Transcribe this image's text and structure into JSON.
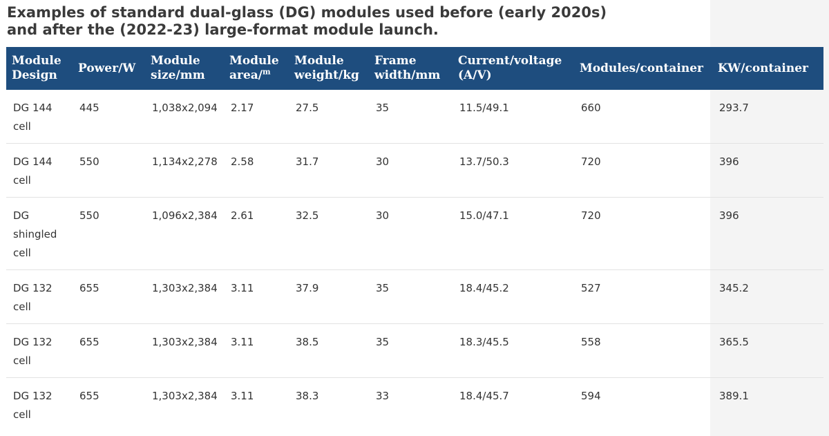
{
  "caption": "Examples of standard dual-glass (DG) modules used before (early 2020s) and after the (2022-23) large-format module launch.",
  "table": {
    "headers": [
      {
        "text": "Module\nDesign"
      },
      {
        "text": "Power/W"
      },
      {
        "text": "Module\nsize/mm"
      },
      {
        "text": "Module\narea/",
        "sup": "m"
      },
      {
        "text": "Module\nweight/kg"
      },
      {
        "text": "Frame\nwidth/mm"
      },
      {
        "text": "Current/voltage\n(A/V)"
      },
      {
        "text": "Modules/container"
      },
      {
        "text": "KW/container"
      }
    ],
    "rows": [
      {
        "design": "DG 144 cell",
        "power": "445",
        "size": "1,038x2,094",
        "area": "2.17",
        "weight": "27.5",
        "frame": "35",
        "iv": "11.5/49.1",
        "modules": "660",
        "kw": "293.7"
      },
      {
        "design": "DG 144 cell",
        "power": "550",
        "size": "1,134x2,278",
        "area": "2.58",
        "weight": "31.7",
        "frame": "30",
        "iv": "13.7/50.3",
        "modules": "720",
        "kw": "396"
      },
      {
        "design": "DG shingled cell",
        "power": "550",
        "size": "1,096x2,384",
        "area": "2.61",
        "weight": "32.5",
        "frame": "30",
        "iv": "15.0/47.1",
        "modules": "720",
        "kw": "396"
      },
      {
        "design": "DG 132 cell",
        "power": "655",
        "size": "1,303x2,384",
        "area": "3.11",
        "weight": "37.9",
        "frame": "35",
        "iv": "18.4/45.2",
        "modules": "527",
        "kw": "345.2"
      },
      {
        "design": "DG 132 cell",
        "power": "655",
        "size": "1,303x2,384",
        "area": "3.11",
        "weight": "38.5",
        "frame": "35",
        "iv": "18.3/45.5",
        "modules": "558",
        "kw": "365.5"
      },
      {
        "design": "DG 132 cell",
        "power": "655",
        "size": "1,303x2,384",
        "area": "3.11",
        "weight": "38.3",
        "frame": "33",
        "iv": "18.4/45.7",
        "modules": "594",
        "kw": "389.1"
      }
    ]
  }
}
